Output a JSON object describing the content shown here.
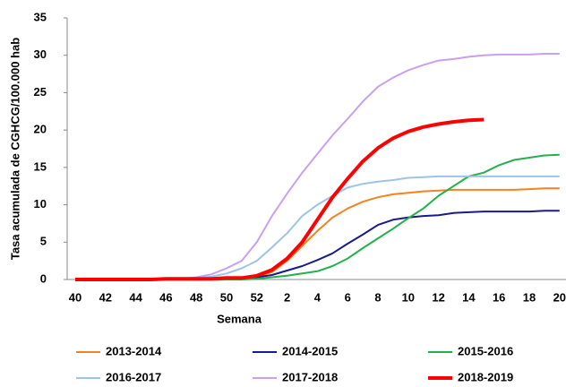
{
  "chart_data": {
    "type": "line",
    "x_label": "Semana",
    "y_label": "Tasa acumulada  de CGHCG/100.000 hab",
    "categories": [
      "40",
      null,
      "42",
      null,
      "44",
      null,
      "46",
      null,
      "48",
      null,
      "50",
      null,
      "52",
      null,
      "2",
      null,
      "4",
      null,
      "6",
      null,
      "8",
      null,
      "10",
      null,
      "12",
      null,
      "14",
      null,
      "16",
      null,
      "18",
      null,
      "20"
    ],
    "ylim": [
      0,
      35
    ],
    "yticks": [
      0,
      5,
      10,
      15,
      20,
      25,
      30,
      35
    ],
    "grid": false,
    "legend_position": "bottom",
    "series": [
      {
        "name": "2013-2014",
        "color": "#f5821f",
        "width": 2,
        "values": [
          0,
          0,
          0,
          0,
          0,
          0,
          0.1,
          0.1,
          0.1,
          0.1,
          0.1,
          0.2,
          0.3,
          1,
          2.5,
          4.5,
          6.5,
          8.3,
          9.5,
          10.4,
          11,
          11.4,
          11.6,
          11.8,
          11.9,
          12,
          12,
          12,
          12,
          12,
          12.1,
          12.2,
          12.2
        ]
      },
      {
        "name": "2014-2015",
        "color": "#1a1a8c",
        "width": 2,
        "values": [
          0,
          0,
          0,
          0,
          0,
          0,
          0,
          0,
          0,
          0,
          0.1,
          0.1,
          0.3,
          0.6,
          1.2,
          1.8,
          2.6,
          3.5,
          4.8,
          6,
          7.3,
          8,
          8.3,
          8.5,
          8.6,
          8.9,
          9,
          9.1,
          9.1,
          9.1,
          9.1,
          9.2,
          9.2
        ]
      },
      {
        "name": "2015-2016",
        "color": "#22b14c",
        "width": 2,
        "values": [
          0,
          0,
          0,
          0,
          0,
          0,
          0,
          0,
          0,
          0,
          0,
          0,
          0.1,
          0.3,
          0.5,
          0.8,
          1.1,
          1.8,
          2.8,
          4.2,
          5.5,
          6.8,
          8.2,
          9.5,
          11.2,
          12.5,
          13.8,
          14.3,
          15.3,
          16,
          16.3,
          16.6,
          16.7
        ]
      },
      {
        "name": "2016-2017",
        "color": "#9dc3e6",
        "width": 2,
        "values": [
          0,
          0,
          0,
          0,
          0,
          0,
          0.1,
          0.1,
          0.2,
          0.4,
          0.8,
          1.5,
          2.5,
          4.3,
          6.2,
          8.5,
          10,
          11.2,
          12.3,
          12.8,
          13.1,
          13.3,
          13.6,
          13.7,
          13.8,
          13.8,
          13.8,
          13.8,
          13.8,
          13.8,
          13.8,
          13.8,
          13.8
        ]
      },
      {
        "name": "2017-2018",
        "color": "#c9a0f0",
        "width": 2,
        "values": [
          0,
          0,
          0,
          0,
          0,
          0,
          0.1,
          0.1,
          0.3,
          0.7,
          1.5,
          2.5,
          5,
          8.5,
          11.5,
          14.3,
          16.8,
          19.3,
          21.5,
          23.8,
          25.8,
          27,
          28,
          28.7,
          29.3,
          29.5,
          29.8,
          30,
          30.1,
          30.1,
          30.1,
          30.2,
          30.2
        ]
      },
      {
        "name": "2018-2019",
        "color": "#ff0000",
        "width": 4,
        "values": [
          0,
          0,
          0,
          0,
          0,
          0,
          0.1,
          0.1,
          0.1,
          0.1,
          0.2,
          0.2,
          0.5,
          1.3,
          2.8,
          5,
          8,
          11,
          13.5,
          15.8,
          17.6,
          18.9,
          19.8,
          20.4,
          20.8,
          21.1,
          21.3,
          21.4,
          null,
          null,
          null,
          null,
          null
        ]
      }
    ]
  }
}
